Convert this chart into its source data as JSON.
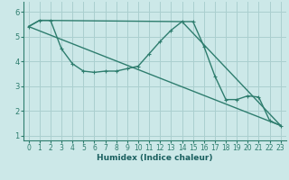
{
  "xlabel": "Humidex (Indice chaleur)",
  "background_color": "#cce8e8",
  "grid_color": "#aacfcf",
  "line_color": "#2e7d6e",
  "xlim": [
    -0.5,
    23.5
  ],
  "ylim": [
    0.8,
    6.4
  ],
  "yticks": [
    1,
    2,
    3,
    4,
    5,
    6
  ],
  "xticks": [
    0,
    1,
    2,
    3,
    4,
    5,
    6,
    7,
    8,
    9,
    10,
    11,
    12,
    13,
    14,
    15,
    16,
    17,
    18,
    19,
    20,
    21,
    22,
    23
  ],
  "line1_x": [
    0,
    1,
    2,
    3,
    4,
    5,
    6,
    7,
    8,
    9,
    10,
    11,
    12,
    13,
    14,
    15,
    16,
    17,
    18,
    19,
    20,
    21,
    22,
    23
  ],
  "line1_y": [
    5.4,
    5.65,
    5.65,
    4.5,
    3.9,
    3.6,
    3.55,
    3.6,
    3.6,
    3.7,
    3.8,
    4.3,
    4.8,
    5.25,
    5.6,
    5.6,
    4.6,
    3.4,
    2.45,
    2.45,
    2.6,
    2.55,
    1.6,
    1.4
  ],
  "line2_x": [
    0,
    23
  ],
  "line2_y": [
    5.4,
    1.4
  ],
  "line3_x": [
    0,
    1,
    14,
    23
  ],
  "line3_y": [
    5.4,
    5.65,
    5.6,
    1.4
  ],
  "xlabel_fontsize": 6.5,
  "tick_fontsize": 5.5,
  "marker_size": 3,
  "line_width": 1.0
}
